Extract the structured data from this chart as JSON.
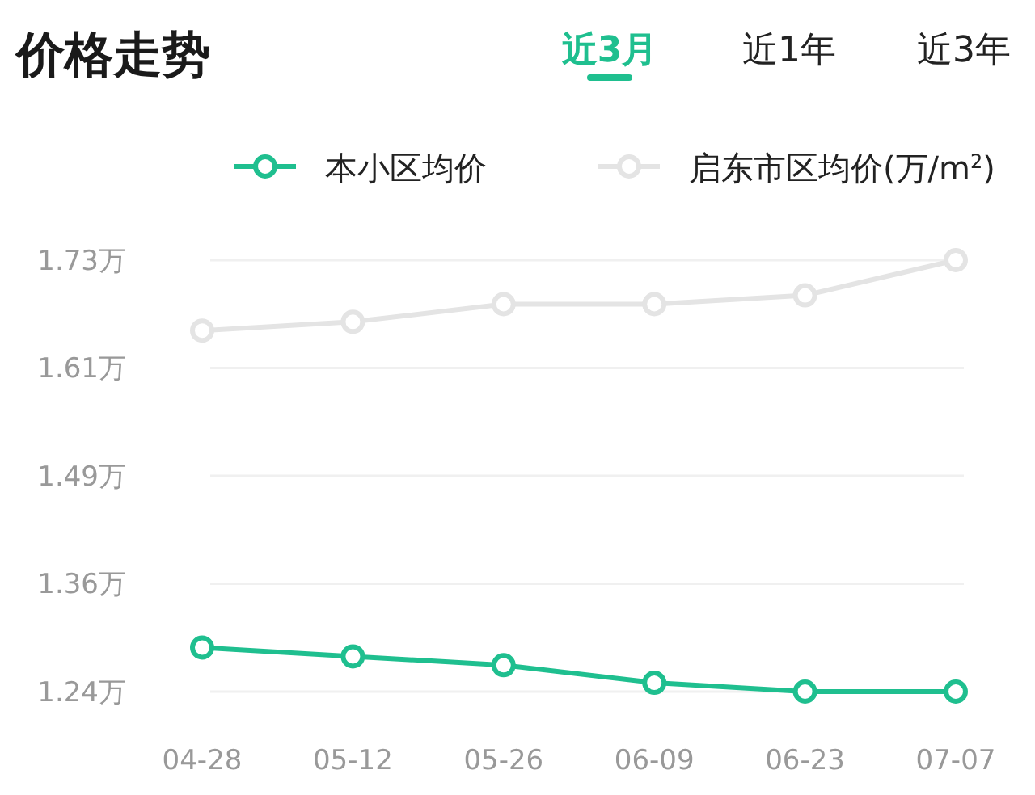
{
  "chart_data": {
    "type": "line",
    "title": "价格走势",
    "annotations": [
      "近3月",
      "近1年",
      "近3年"
    ],
    "categories": [
      "04-28",
      "05-12",
      "05-26",
      "06-09",
      "06-23",
      "07-07"
    ],
    "series": [
      {
        "name": "本小区均价",
        "color": "#1fbf8f",
        "values": [
          1.29,
          1.28,
          1.27,
          1.25,
          1.24,
          1.24
        ]
      },
      {
        "name": "启东市区均价(万/m$^{2}$)",
        "color": "#e4e4e4",
        "values": [
          1.65,
          1.66,
          1.68,
          1.68,
          1.69,
          1.73
        ]
      }
    ],
    "ylim": [
      1.24,
      1.73
    ],
    "yticks": [
      {
        "value": 1.24,
        "label": "1.24万"
      },
      {
        "value": 1.3625,
        "label": "1.36万"
      },
      {
        "value": 1.485,
        "label": "1.49万"
      },
      {
        "value": 1.6075,
        "label": "1.61万"
      },
      {
        "value": 1.73,
        "label": "1.73万"
      }
    ],
    "grid": "y",
    "legend": "top right",
    "marker": "circle",
    "line_style": "solid"
  }
}
